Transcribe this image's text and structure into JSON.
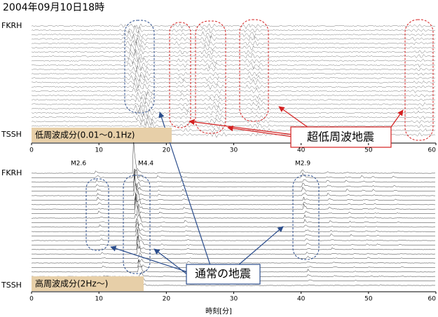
{
  "chart_data": [
    {
      "type": "seismogram",
      "title": "2004年09月10日18時",
      "xlim": [
        0,
        60
      ],
      "xticks": [
        0,
        10,
        20,
        30,
        40,
        50,
        60
      ],
      "stations": [
        "FKRH",
        "TSSH"
      ],
      "band_label": "低周波成分(0.01〜0.1Hz)",
      "annotation": "超低周波地震"
    },
    {
      "type": "seismogram",
      "xlim": [
        0,
        60
      ],
      "xticks": [
        0,
        10,
        20,
        30,
        40,
        50,
        60
      ],
      "stations": [
        "FKRH",
        "TSSH"
      ],
      "band_label": "高周波成分(2Hz〜)",
      "annotation": "通常の地震",
      "event_labels": [
        "M2.6",
        "M4.4",
        "M2.9"
      ],
      "xlabel": "時刻[分]"
    }
  ]
}
